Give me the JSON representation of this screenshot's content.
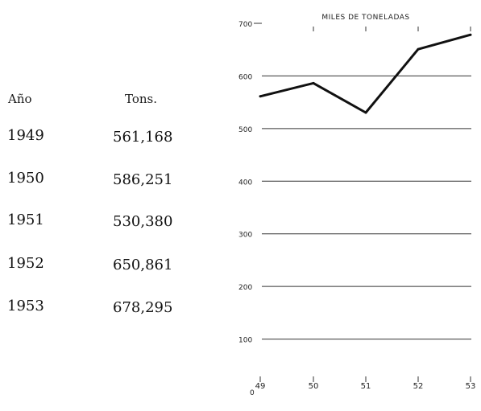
{
  "table": {
    "header_year": "Año",
    "header_tons": "Tons.",
    "rows": [
      {
        "year": "1949",
        "tons": "561,168"
      },
      {
        "year": "1950",
        "tons": "586,251"
      },
      {
        "year": "1951",
        "tons": "530,380"
      },
      {
        "year": "1952",
        "tons": "650,861"
      },
      {
        "year": "1953",
        "tons": "678,295"
      }
    ]
  },
  "chart_data": {
    "type": "line",
    "title": "MILES DE TONELADAS",
    "x": [
      "49",
      "50",
      "51",
      "52",
      "53"
    ],
    "series": [
      {
        "values": [
          561.168,
          586.251,
          530.38,
          650.861,
          678.295
        ]
      }
    ],
    "y_ticks": [
      0,
      100,
      200,
      300,
      400,
      500,
      600,
      700
    ],
    "y_tick_labels": [
      "0",
      "100",
      "200",
      "300",
      "400",
      "500",
      "600",
      "700"
    ],
    "ylim": [
      0,
      700
    ],
    "grid": true,
    "line_color": "#111111"
  }
}
